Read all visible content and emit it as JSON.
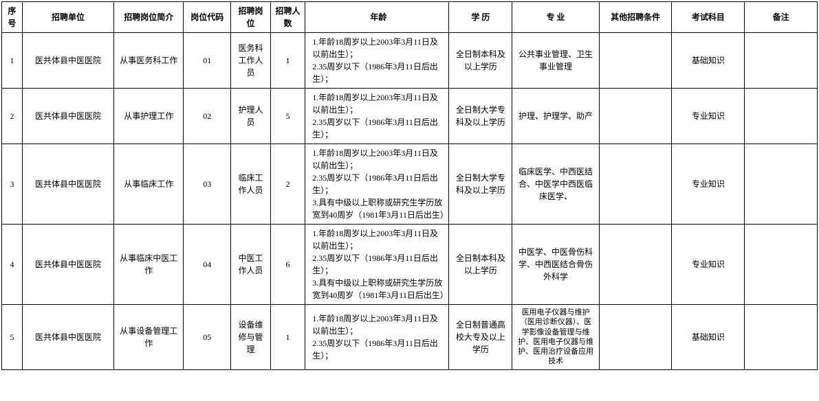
{
  "headers": {
    "seq": "序号",
    "unit": "招聘单位",
    "desc": "招聘岗位简介",
    "code": "岗位代码",
    "pos": "招聘岗位",
    "count": "招聘人数",
    "age": "年龄",
    "edu": "学 历",
    "major": "专 业",
    "other": "其他招聘条件",
    "exam": "考试科目",
    "remark": "备注"
  },
  "rows": [
    {
      "seq": "1",
      "unit": "医共体县中医医院",
      "desc": "从事医务科工作",
      "code": "01",
      "pos": "医务科工作人员",
      "count": "1",
      "age": "  1.年龄18周岁以上2003年3月11日及以前出生）；\n  2.35周岁以下（1986年3月11日后出生）；",
      "edu": "全日制本科及以上学历",
      "major": "公共事业管理、卫生事业管理",
      "other": "",
      "exam": "基础知识",
      "remark": ""
    },
    {
      "seq": "2",
      "unit": "医共体县中医医院",
      "desc": "从事护理工作",
      "code": "02",
      "pos": "护理人员",
      "count": "5",
      "age": "  1.年龄18周岁以上2003年3月11日及以前出生）；\n  2.35周岁以下（1986年3月11日后出生）；",
      "edu": "全日制大学专科及以上学历",
      "major": "护理、护理学、助产",
      "other": "",
      "exam": "专业知识",
      "remark": ""
    },
    {
      "seq": "3",
      "unit": "医共体县中医医院",
      "desc": "从事临床工作",
      "code": "03",
      "pos": "临床工作人员",
      "count": "2",
      "age": "  1.年龄18周岁以上2003年3月11日及以前出生）；\n  2.35周岁以下（1986年3月11日后出生）；\n  3.具有中级以上职称或研究生学历放宽到40周岁（1981年3月11日后出生）",
      "edu": "全日制大学专科及以上学历",
      "major": "临床医学、中西医结合、中医学中西医临床医学、",
      "other": "",
      "exam": "专业知识",
      "remark": ""
    },
    {
      "seq": "4",
      "unit": "医共体县中医医院",
      "desc": "从事临床中医工作",
      "code": "04",
      "pos": "中医工作人员",
      "count": "6",
      "age": "  1.年龄18周岁以上2003年3月11日及以前出生）；\n  2.35周岁以下（1986年3月11日后出生）；\n  3.具有中级以上职称或研究生学历放宽到40周岁（1981年3月11日后出生）",
      "edu": "全日制本科及以上学历",
      "major": "中医学、中医骨伤科学、中西医结合骨伤外科学",
      "other": "",
      "exam": "专业知识",
      "remark": ""
    },
    {
      "seq": "5",
      "unit": "医共体县中医医院",
      "desc": "从事设备管理工作",
      "code": "05",
      "pos": "设备维修与管理",
      "count": "1",
      "age": "  1.年龄18周岁以上2003年3月11日及以前出生）；\n  2.35周岁以下（1986年3月11日后出生）；",
      "edu": "全日制普通高校大专及以上学历",
      "major": "医用电子仪器与维护（医用诊断仪器）、医学影像设备管理与维护、医用电子仪器与维护、医用治疗设备应用技术",
      "other": "",
      "exam": "基础知识",
      "remark": ""
    }
  ],
  "colors": {
    "border": "#000000",
    "background": "#ffffff",
    "text": "#000000"
  },
  "typography": {
    "font_family": "SimSun",
    "base_fontsize": 12,
    "header_weight": "bold"
  }
}
